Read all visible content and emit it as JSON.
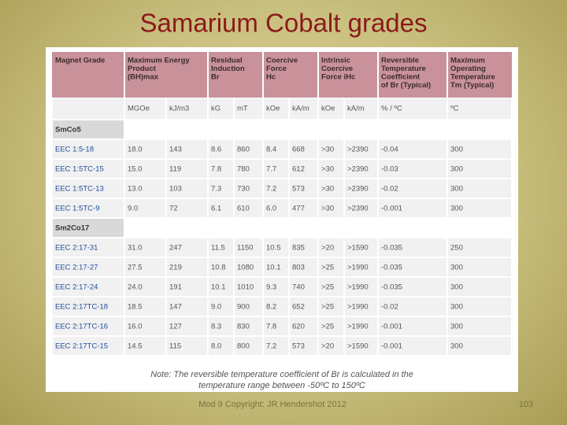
{
  "title": "Samarium Cobalt grades",
  "table": {
    "headers": [
      [
        "Magnet Grade"
      ],
      [
        "Maximum Energy",
        "Product",
        "(BH)max"
      ],
      [
        "Residual",
        "Induction",
        "Br"
      ],
      [
        "Coercive",
        "Force",
        "Hc"
      ],
      [
        "Intrinsic",
        "Coercive",
        "Force iHc"
      ],
      [
        "Reversible",
        "Temperature",
        "Coefficient",
        "of Br (Typical)"
      ],
      [
        "Maximum",
        "Operating",
        "Temperature",
        "Tm (Typical)"
      ]
    ],
    "units": [
      "MGOe",
      "kJ/m3",
      "kG",
      "mT",
      "kOe",
      "kA/m",
      "kOe",
      "kA/m",
      "% / ºC",
      "ºC"
    ],
    "groups": [
      {
        "name": "SmCo5",
        "rows": [
          [
            "EEC 1:5-18",
            "18.0",
            "143",
            "8.6",
            "860",
            "8.4",
            "668",
            ">30",
            ">2390",
            "-0.04",
            "300"
          ],
          [
            "EEC 1:5TC-15",
            "15.0",
            "119",
            "7.8",
            "780",
            "7.7",
            "612",
            ">30",
            ">2390",
            "-0.03",
            "300"
          ],
          [
            "EEC 1:5TC-13",
            "13.0",
            "103",
            "7.3",
            "730",
            "7.2",
            "573",
            ">30",
            ">2390",
            "-0.02",
            "300"
          ],
          [
            "EEC 1:5TC-9",
            "9.0",
            "72",
            "6.1",
            "610",
            "6.0",
            "477",
            ">30",
            ">2390",
            "-0.001",
            "300"
          ]
        ]
      },
      {
        "name": "Sm2Co17",
        "rows": [
          [
            "EEC 2:17-31",
            "31.0",
            "247",
            "11.5",
            "1150",
            "10.5",
            "835",
            ">20",
            ">1590",
            "-0.035",
            "250"
          ],
          [
            "EEC 2:17-27",
            "27.5",
            "219",
            "10.8",
            "1080",
            "10.1",
            "803",
            ">25",
            ">1990",
            "-0.035",
            "300"
          ],
          [
            "EEC 2:17-24",
            "24.0",
            "191",
            "10.1",
            "1010",
            "9.3",
            "740",
            ">25",
            ">1990",
            "-0.035",
            "300"
          ],
          [
            "EEC 2:17TC-18",
            "18.5",
            "147",
            "9.0",
            "900",
            "8.2",
            "652",
            ">25",
            ">1990",
            "-0.02",
            "300"
          ],
          [
            "EEC 2:17TC-16",
            "16.0",
            "127",
            "8.3",
            "830",
            "7.8",
            "620",
            ">25",
            ">1990",
            "-0.001",
            "300"
          ],
          [
            "EEC 2:17TC-15",
            "14.5",
            "115",
            "8.0",
            "800",
            "7.2",
            "573",
            ">20",
            ">1590",
            "-0.001",
            "300"
          ]
        ]
      }
    ],
    "note": [
      "Note: The reversible temperature coefficient of Br is calculated in the",
      "temperature range between -50ºC to 150ºC"
    ]
  },
  "footer": {
    "copyright": "Mod 9 Copyright: JR Hendershot 2012",
    "page": "103"
  }
}
